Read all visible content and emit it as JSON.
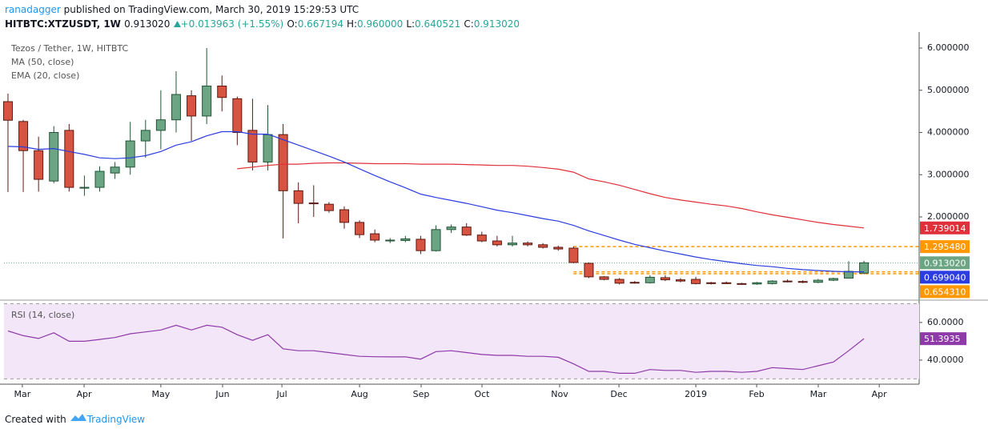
{
  "header": {
    "author": "ranadagger",
    "published": "published on TradingView.com, March 30, 2019 15:29:53 UTC",
    "symbol": "HITBTC:XTZUSDT, 1W",
    "last": "0.913020",
    "change": "+0.013963 (+1.55%)",
    "ohlc": [
      {
        "label": "O:",
        "value": "0.667194"
      },
      {
        "label": "H:",
        "value": "0.960000"
      },
      {
        "label": "L:",
        "value": "0.640521"
      },
      {
        "label": "C:",
        "value": "0.913020"
      }
    ]
  },
  "chart_data": [
    {
      "type": "candlestick",
      "title": "Tezos / Tether, 1W, HITBTC",
      "x": [
        0,
        1,
        2,
        3,
        4,
        5,
        6,
        7,
        8,
        9,
        10,
        11,
        12,
        13,
        14,
        15,
        16,
        17,
        18,
        19,
        20,
        21,
        22,
        23,
        24,
        25,
        26,
        27,
        28,
        29,
        30,
        31,
        32,
        33,
        34,
        35,
        36,
        37,
        38,
        39,
        40,
        41,
        42,
        43,
        44,
        45,
        46,
        47,
        48,
        49,
        50,
        51,
        52,
        53,
        54,
        55,
        56
      ],
      "open": [
        4.73,
        4.26,
        3.57,
        2.85,
        4.05,
        2.7,
        2.7,
        3.04,
        3.18,
        3.8,
        4.05,
        4.3,
        4.87,
        4.39,
        5.1,
        4.8,
        4.05,
        3.3,
        3.95,
        2.62,
        2.33,
        2.3,
        2.17,
        1.87,
        1.6,
        1.45,
        1.44,
        1.47,
        1.2,
        1.7,
        1.76,
        1.57,
        1.43,
        1.34,
        1.38,
        1.34,
        1.28,
        1.26,
        0.9,
        0.58,
        0.52,
        0.45,
        0.44,
        0.56,
        0.51,
        0.52,
        0.44,
        0.44,
        0.42,
        0.41,
        0.42,
        0.48,
        0.47,
        0.45,
        0.5,
        0.55,
        0.667194
      ],
      "high": [
        4.92,
        4.3,
        3.9,
        4.15,
        4.2,
        2.98,
        3.2,
        3.3,
        4.25,
        4.3,
        5.0,
        5.45,
        5.0,
        6.0,
        5.35,
        4.85,
        4.8,
        4.65,
        4.2,
        2.82,
        2.75,
        2.35,
        2.25,
        1.92,
        1.7,
        1.5,
        1.55,
        1.55,
        1.8,
        1.82,
        1.85,
        1.65,
        1.55,
        1.55,
        1.42,
        1.38,
        1.32,
        1.3,
        0.92,
        0.6,
        0.55,
        0.48,
        0.62,
        0.62,
        0.55,
        0.58,
        0.46,
        0.47,
        0.44,
        0.46,
        0.5,
        0.52,
        0.5,
        0.53,
        0.56,
        0.95,
        0.96
      ],
      "low": [
        2.59,
        2.59,
        2.6,
        2.8,
        2.6,
        2.5,
        2.6,
        2.9,
        3.0,
        3.4,
        3.6,
        4.0,
        3.8,
        4.2,
        4.5,
        3.7,
        3.1,
        3.1,
        1.49,
        1.85,
        2.0,
        2.1,
        1.72,
        1.5,
        1.4,
        1.38,
        1.4,
        1.12,
        1.18,
        1.62,
        1.55,
        1.4,
        1.3,
        1.3,
        1.3,
        1.25,
        1.2,
        0.9,
        0.55,
        0.5,
        0.4,
        0.42,
        0.42,
        0.48,
        0.45,
        0.4,
        0.4,
        0.41,
        0.39,
        0.39,
        0.4,
        0.45,
        0.43,
        0.43,
        0.48,
        0.54,
        0.640521
      ],
      "close": [
        4.29,
        3.57,
        2.89,
        4.0,
        2.7,
        2.7,
        3.08,
        3.18,
        3.8,
        4.05,
        4.3,
        4.9,
        4.39,
        5.1,
        4.83,
        4.0,
        3.3,
        3.95,
        2.62,
        2.32,
        2.32,
        2.15,
        1.87,
        1.58,
        1.45,
        1.45,
        1.48,
        1.2,
        1.7,
        1.76,
        1.57,
        1.43,
        1.34,
        1.38,
        1.34,
        1.28,
        1.24,
        0.92,
        0.58,
        0.52,
        0.43,
        0.44,
        0.57,
        0.51,
        0.48,
        0.42,
        0.42,
        0.42,
        0.41,
        0.44,
        0.48,
        0.47,
        0.45,
        0.5,
        0.54,
        0.71,
        0.91302
      ],
      "up_color": "#6ba583",
      "down_color": "#d75442",
      "up_border": "#225437",
      "down_border": "#5b1a13",
      "last_label": "0.913020",
      "overlays": [
        {
          "name": "MA (50, close)",
          "color": "#e0303a",
          "last_label": "1.739014",
          "values": [
            null,
            null,
            null,
            null,
            null,
            null,
            null,
            null,
            null,
            null,
            null,
            null,
            null,
            null,
            null,
            3.14,
            3.18,
            3.22,
            3.25,
            3.25,
            3.27,
            3.28,
            3.28,
            3.27,
            3.26,
            3.26,
            3.26,
            3.25,
            3.25,
            3.25,
            3.24,
            3.23,
            3.22,
            3.22,
            3.2,
            3.17,
            3.13,
            3.06,
            2.9,
            2.83,
            2.75,
            2.65,
            2.55,
            2.46,
            2.4,
            2.35,
            2.3,
            2.26,
            2.2,
            2.12,
            2.05,
            1.99,
            1.93,
            1.87,
            1.82,
            1.78,
            1.739014
          ]
        },
        {
          "name": "EMA (20, close)",
          "color": "#2b3de0",
          "last_label": "0.699040",
          "values": [
            3.67,
            3.66,
            3.6,
            3.62,
            3.55,
            3.48,
            3.4,
            3.38,
            3.4,
            3.45,
            3.55,
            3.7,
            3.78,
            3.92,
            4.02,
            4.02,
            3.96,
            3.96,
            3.83,
            3.7,
            3.57,
            3.44,
            3.3,
            3.14,
            2.98,
            2.83,
            2.69,
            2.54,
            2.46,
            2.39,
            2.32,
            2.24,
            2.16,
            2.1,
            2.03,
            1.96,
            1.9,
            1.8,
            1.67,
            1.56,
            1.45,
            1.35,
            1.27,
            1.19,
            1.12,
            1.05,
            0.99,
            0.94,
            0.89,
            0.85,
            0.82,
            0.78,
            0.75,
            0.73,
            0.71,
            0.7,
            0.69904
          ]
        }
      ],
      "levels": [
        {
          "value": 1.29548,
          "label": "1.295480"
        },
        {
          "value": 0.69904
        },
        {
          "value": 0.65431,
          "label": "0.654310"
        }
      ],
      "level_color": "#ff9800",
      "xlim": [
        -0.26,
        59.61
      ],
      "ylim": [
        0.085,
        6.38
      ],
      "yticks": [
        {
          "value": 2,
          "label": "2.000000"
        },
        {
          "value": 3,
          "label": "3.000000"
        },
        {
          "value": 4,
          "label": "4.000000"
        },
        {
          "value": 5,
          "label": "5.000000"
        },
        {
          "value": 6,
          "label": "6.000000"
        }
      ]
    },
    {
      "type": "line",
      "title": "RSI (14, close)",
      "color": "#8e3aa8",
      "last_label": "51.3935",
      "x": [
        0,
        1,
        2,
        3,
        4,
        5,
        6,
        7,
        8,
        9,
        10,
        11,
        12,
        13,
        14,
        15,
        16,
        17,
        18,
        19,
        20,
        21,
        22,
        23,
        24,
        25,
        26,
        27,
        28,
        29,
        30,
        31,
        32,
        33,
        34,
        35,
        36,
        37,
        38,
        39,
        40,
        41,
        42,
        43,
        44,
        45,
        46,
        47,
        48,
        49,
        50,
        51,
        52,
        53,
        54,
        55,
        56
      ],
      "values": [
        55.5,
        53,
        51.5,
        54.5,
        50,
        50,
        51,
        52,
        54,
        55,
        56,
        58.5,
        56,
        58.5,
        57.5,
        53.5,
        50.5,
        53.5,
        46,
        45,
        45,
        44,
        43,
        42,
        41.8,
        41.7,
        41.7,
        40.5,
        44.5,
        45,
        44,
        43,
        42.5,
        42.5,
        42,
        42,
        41.5,
        38,
        34,
        34,
        33,
        33,
        35,
        34.5,
        34.5,
        33.5,
        34,
        34,
        33.5,
        34,
        36,
        35.5,
        35,
        37,
        39,
        45,
        51.3935
      ],
      "band": [
        30,
        70
      ],
      "band_color": "#f3e6f8",
      "xlim": [
        -0.26,
        59.61
      ],
      "ylim": [
        27.2,
        70.6
      ],
      "yticks": [
        {
          "value": 40,
          "label": "40.0000"
        },
        {
          "value": 60,
          "label": "60.0000"
        }
      ],
      "xticks": [
        {
          "value": 0.94,
          "label": "Mar"
        },
        {
          "value": 4.98,
          "label": "Apr"
        },
        {
          "value": 10.0,
          "label": "May"
        },
        {
          "value": 14.04,
          "label": "Jun"
        },
        {
          "value": 17.92,
          "label": "Jul"
        },
        {
          "value": 23.0,
          "label": "Aug"
        },
        {
          "value": 27.03,
          "label": "Sep"
        },
        {
          "value": 31.01,
          "label": "Oct"
        },
        {
          "value": 36.09,
          "label": "Nov"
        },
        {
          "value": 39.97,
          "label": "Dec"
        },
        {
          "value": 45.0,
          "label": "2019"
        },
        {
          "value": 48.98,
          "label": "Feb"
        },
        {
          "value": 53.01,
          "label": "Mar"
        },
        {
          "value": 57.0,
          "label": "Apr"
        }
      ]
    }
  ],
  "footer": {
    "created": "Created with",
    "brand": "TradingView"
  }
}
